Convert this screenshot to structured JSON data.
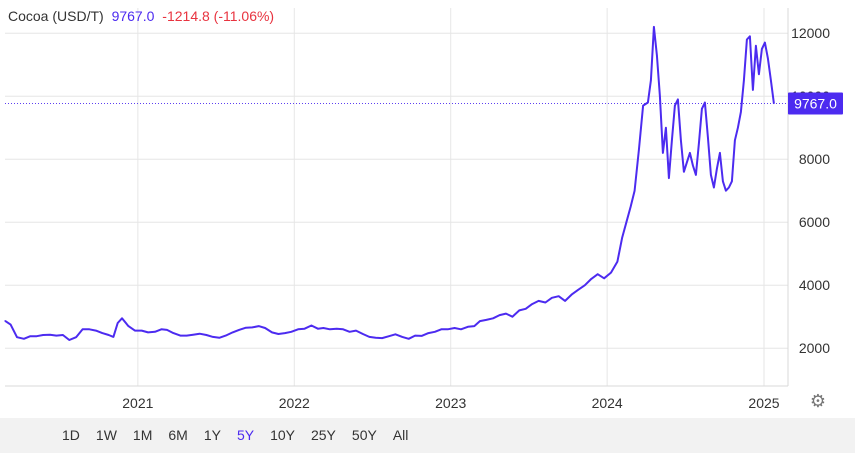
{
  "legend": {
    "title": "Cocoa (USD/T)",
    "last": "9767.0",
    "change": "-1214.8 (-11.06%)"
  },
  "colors": {
    "line": "#4c2bf0",
    "negative": "#e8333f",
    "grid": "#e6e6e6",
    "text": "#333333",
    "active_range": "#4c2bf0"
  },
  "settings_icon": "gear-icon",
  "range_buttons": [
    "1D",
    "1W",
    "1M",
    "6M",
    "1Y",
    "5Y",
    "10Y",
    "25Y",
    "50Y",
    "All"
  ],
  "active_range": "5Y",
  "chart_data": {
    "type": "line",
    "title": "Cocoa (USD/T)",
    "xlabel": "",
    "ylabel": "",
    "xlim": [
      "2020-02-26",
      "2025-02-26"
    ],
    "ylim": [
      800,
      12800
    ],
    "grid": true,
    "y_axis_position": "right",
    "yticks": [
      2000,
      4000,
      6000,
      8000,
      10000,
      12000
    ],
    "xticks": [
      {
        "label": "2021",
        "date": "2021-01-01"
      },
      {
        "label": "2022",
        "date": "2022-01-01"
      },
      {
        "label": "2023",
        "date": "2023-01-01"
      },
      {
        "label": "2024",
        "date": "2024-01-01"
      },
      {
        "label": "2025",
        "date": "2025-01-01"
      }
    ],
    "last_value": 9767.0,
    "last_label": "9767.0",
    "series": [
      {
        "name": "",
        "points": [
          [
            "2020-02-26",
            2870
          ],
          [
            "2020-03-10",
            2750
          ],
          [
            "2020-03-25",
            2350
          ],
          [
            "2020-04-10",
            2300
          ],
          [
            "2020-04-25",
            2380
          ],
          [
            "2020-05-10",
            2380
          ],
          [
            "2020-05-25",
            2420
          ],
          [
            "2020-06-10",
            2430
          ],
          [
            "2020-06-25",
            2400
          ],
          [
            "2020-07-10",
            2420
          ],
          [
            "2020-07-25",
            2260
          ],
          [
            "2020-08-10",
            2350
          ],
          [
            "2020-08-25",
            2600
          ],
          [
            "2020-09-10",
            2600
          ],
          [
            "2020-09-25",
            2560
          ],
          [
            "2020-10-10",
            2480
          ],
          [
            "2020-10-25",
            2420
          ],
          [
            "2020-11-05",
            2360
          ],
          [
            "2020-11-15",
            2800
          ],
          [
            "2020-11-25",
            2950
          ],
          [
            "2020-12-10",
            2700
          ],
          [
            "2020-12-25",
            2560
          ],
          [
            "2021-01-10",
            2560
          ],
          [
            "2021-01-25",
            2500
          ],
          [
            "2021-02-10",
            2520
          ],
          [
            "2021-02-25",
            2600
          ],
          [
            "2021-03-10",
            2580
          ],
          [
            "2021-03-25",
            2480
          ],
          [
            "2021-04-10",
            2400
          ],
          [
            "2021-04-25",
            2400
          ],
          [
            "2021-05-10",
            2430
          ],
          [
            "2021-05-25",
            2460
          ],
          [
            "2021-06-10",
            2420
          ],
          [
            "2021-06-25",
            2360
          ],
          [
            "2021-07-10",
            2330
          ],
          [
            "2021-07-25",
            2400
          ],
          [
            "2021-08-10",
            2500
          ],
          [
            "2021-08-25",
            2580
          ],
          [
            "2021-09-10",
            2650
          ],
          [
            "2021-09-25",
            2660
          ],
          [
            "2021-10-10",
            2700
          ],
          [
            "2021-10-25",
            2640
          ],
          [
            "2021-11-10",
            2500
          ],
          [
            "2021-11-25",
            2450
          ],
          [
            "2021-12-10",
            2480
          ],
          [
            "2021-12-25",
            2520
          ],
          [
            "2022-01-10",
            2600
          ],
          [
            "2022-01-25",
            2620
          ],
          [
            "2022-02-10",
            2720
          ],
          [
            "2022-02-25",
            2620
          ],
          [
            "2022-03-10",
            2640
          ],
          [
            "2022-03-25",
            2600
          ],
          [
            "2022-04-10",
            2620
          ],
          [
            "2022-04-25",
            2600
          ],
          [
            "2022-05-10",
            2520
          ],
          [
            "2022-05-25",
            2560
          ],
          [
            "2022-06-10",
            2450
          ],
          [
            "2022-06-25",
            2360
          ],
          [
            "2022-07-10",
            2330
          ],
          [
            "2022-07-25",
            2320
          ],
          [
            "2022-08-10",
            2380
          ],
          [
            "2022-08-25",
            2440
          ],
          [
            "2022-09-10",
            2360
          ],
          [
            "2022-09-25",
            2300
          ],
          [
            "2022-10-10",
            2400
          ],
          [
            "2022-10-25",
            2390
          ],
          [
            "2022-11-10",
            2480
          ],
          [
            "2022-11-25",
            2520
          ],
          [
            "2022-12-10",
            2600
          ],
          [
            "2022-12-25",
            2600
          ],
          [
            "2023-01-10",
            2640
          ],
          [
            "2023-01-25",
            2600
          ],
          [
            "2023-02-10",
            2680
          ],
          [
            "2023-02-25",
            2700
          ],
          [
            "2023-03-10",
            2860
          ],
          [
            "2023-03-25",
            2900
          ],
          [
            "2023-04-10",
            2950
          ],
          [
            "2023-04-25",
            3050
          ],
          [
            "2023-05-10",
            3100
          ],
          [
            "2023-05-25",
            3000
          ],
          [
            "2023-06-10",
            3200
          ],
          [
            "2023-06-25",
            3250
          ],
          [
            "2023-07-10",
            3400
          ],
          [
            "2023-07-25",
            3500
          ],
          [
            "2023-08-10",
            3450
          ],
          [
            "2023-08-25",
            3600
          ],
          [
            "2023-09-10",
            3650
          ],
          [
            "2023-09-25",
            3500
          ],
          [
            "2023-10-10",
            3700
          ],
          [
            "2023-10-25",
            3850
          ],
          [
            "2023-11-10",
            4000
          ],
          [
            "2023-11-25",
            4200
          ],
          [
            "2023-12-10",
            4350
          ],
          [
            "2023-12-25",
            4220
          ],
          [
            "2024-01-10",
            4400
          ],
          [
            "2024-01-25",
            4750
          ],
          [
            "2024-02-05",
            5500
          ],
          [
            "2024-02-15",
            6000
          ],
          [
            "2024-02-25",
            6500
          ],
          [
            "2024-03-05",
            7000
          ],
          [
            "2024-03-15",
            8300
          ],
          [
            "2024-03-25",
            9700
          ],
          [
            "2024-04-05",
            9800
          ],
          [
            "2024-04-12",
            10500
          ],
          [
            "2024-04-19",
            12200
          ],
          [
            "2024-04-26",
            11300
          ],
          [
            "2024-05-03",
            10000
          ],
          [
            "2024-05-10",
            8200
          ],
          [
            "2024-05-17",
            9000
          ],
          [
            "2024-05-24",
            7400
          ],
          [
            "2024-05-31",
            8600
          ],
          [
            "2024-06-07",
            9700
          ],
          [
            "2024-06-14",
            9900
          ],
          [
            "2024-06-21",
            8600
          ],
          [
            "2024-06-28",
            7600
          ],
          [
            "2024-07-05",
            7900
          ],
          [
            "2024-07-12",
            8200
          ],
          [
            "2024-07-19",
            7800
          ],
          [
            "2024-07-26",
            7500
          ],
          [
            "2024-08-02",
            8500
          ],
          [
            "2024-08-09",
            9600
          ],
          [
            "2024-08-16",
            9800
          ],
          [
            "2024-08-23",
            8700
          ],
          [
            "2024-08-30",
            7500
          ],
          [
            "2024-09-06",
            7100
          ],
          [
            "2024-09-13",
            7700
          ],
          [
            "2024-09-20",
            8200
          ],
          [
            "2024-09-27",
            7300
          ],
          [
            "2024-10-04",
            7000
          ],
          [
            "2024-10-11",
            7100
          ],
          [
            "2024-10-18",
            7300
          ],
          [
            "2024-10-25",
            8600
          ],
          [
            "2024-11-01",
            9000
          ],
          [
            "2024-11-08",
            9500
          ],
          [
            "2024-11-15",
            10500
          ],
          [
            "2024-11-22",
            11800
          ],
          [
            "2024-11-29",
            11900
          ],
          [
            "2024-12-06",
            10200
          ],
          [
            "2024-12-13",
            11600
          ],
          [
            "2024-12-20",
            10700
          ],
          [
            "2024-12-27",
            11500
          ],
          [
            "2025-01-03",
            11700
          ],
          [
            "2025-01-10",
            11200
          ],
          [
            "2025-01-17",
            10500
          ],
          [
            "2025-01-24",
            9767
          ]
        ]
      }
    ]
  }
}
